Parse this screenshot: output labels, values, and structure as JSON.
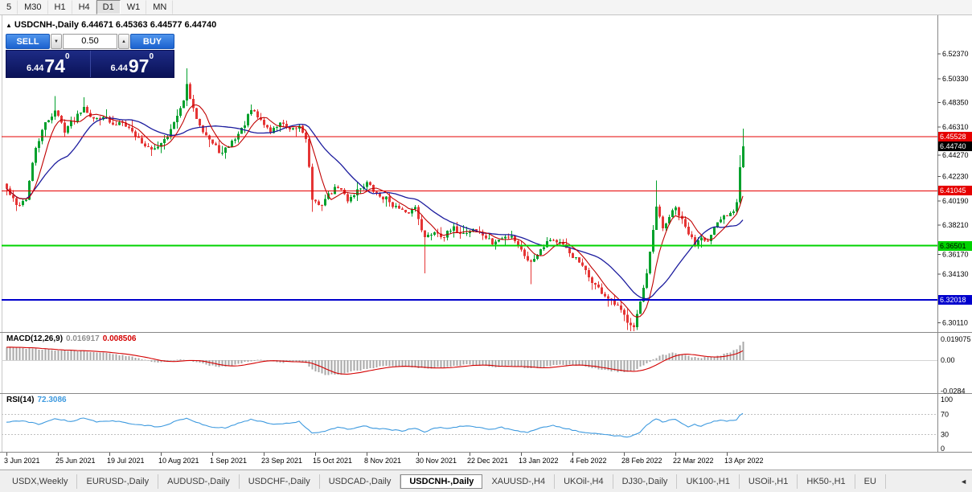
{
  "icons": {
    "collapse": "▲",
    "scroll_left": "◄",
    "spin_up": "▲",
    "spin_down": "▼"
  },
  "toolbar": {
    "timeframes": [
      "5",
      "M30",
      "H1",
      "H4",
      "D1",
      "W1",
      "MN"
    ],
    "active": "D1"
  },
  "chart_window": {
    "title": {
      "symbol": "USDCNH-,Daily",
      "ohlc": "6.44671 6.45363 6.44577 6.44740"
    },
    "trade_panel": {
      "sell_label": "SELL",
      "buy_label": "BUY",
      "volume": "0.50",
      "sell_price": {
        "prefix": "6.44",
        "big": "74",
        "sup": "0"
      },
      "buy_price": {
        "prefix": "6.44",
        "big": "97",
        "sup": "0"
      }
    }
  },
  "chart_data": {
    "type": "candlestick",
    "symbol": "USDCNH-,Daily",
    "current_ohlc": {
      "open": "6.44671",
      "high": "6.45363",
      "low": "6.44577",
      "close": "6.44740"
    },
    "count": 230,
    "candles_per_xlabel": 16,
    "x_labels": [
      "3 Jun 2021",
      "25 Jun 2021",
      "19 Jul 2021",
      "10 Aug 2021",
      "1 Sep 2021",
      "23 Sep 2021",
      "15 Oct 2021",
      "8 Nov 2021",
      "30 Nov 2021",
      "22 Dec 2021",
      "13 Jan 2022",
      "4 Feb 2022",
      "28 Feb 2022",
      "22 Mar 2022",
      "13 Apr 2022"
    ],
    "y_ticks": [
      "6.52370",
      "6.50330",
      "6.48350",
      "6.46310",
      "6.44270",
      "6.42230",
      "6.40190",
      "6.38210",
      "6.36170",
      "6.34130",
      "6.30110"
    ],
    "price_range": {
      "top": 6.5558,
      "bottom": 6.2935
    },
    "close_anchors": [
      [
        0,
        6.412
      ],
      [
        3,
        6.398
      ],
      [
        6,
        6.404
      ],
      [
        9,
        6.446
      ],
      [
        12,
        6.466
      ],
      [
        15,
        6.477
      ],
      [
        18,
        6.461
      ],
      [
        21,
        6.47
      ],
      [
        24,
        6.481
      ],
      [
        27,
        6.469
      ],
      [
        30,
        6.473
      ],
      [
        33,
        6.464
      ],
      [
        36,
        6.469
      ],
      [
        39,
        6.459
      ],
      [
        42,
        6.451
      ],
      [
        45,
        6.443
      ],
      [
        48,
        6.451
      ],
      [
        51,
        6.461
      ],
      [
        54,
        6.477
      ],
      [
        56,
        6.497
      ],
      [
        58,
        6.477
      ],
      [
        61,
        6.461
      ],
      [
        64,
        6.449
      ],
      [
        67,
        6.441
      ],
      [
        70,
        6.451
      ],
      [
        73,
        6.461
      ],
      [
        76,
        6.477
      ],
      [
        79,
        6.469
      ],
      [
        82,
        6.459
      ],
      [
        85,
        6.467
      ],
      [
        88,
        6.459
      ],
      [
        91,
        6.464
      ],
      [
        93,
        6.455
      ],
      [
        95,
        6.404
      ],
      [
        97,
        6.397
      ],
      [
        100,
        6.407
      ],
      [
        103,
        6.414
      ],
      [
        106,
        6.403
      ],
      [
        109,
        6.411
      ],
      [
        112,
        6.417
      ],
      [
        115,
        6.407
      ],
      [
        118,
        6.404
      ],
      [
        121,
        6.397
      ],
      [
        124,
        6.391
      ],
      [
        127,
        6.397
      ],
      [
        130,
        6.371
      ],
      [
        133,
        6.377
      ],
      [
        136,
        6.373
      ],
      [
        139,
        6.379
      ],
      [
        142,
        6.375
      ],
      [
        145,
        6.379
      ],
      [
        148,
        6.374
      ],
      [
        151,
        6.367
      ],
      [
        154,
        6.371
      ],
      [
        157,
        6.374
      ],
      [
        160,
        6.361
      ],
      [
        163,
        6.351
      ],
      [
        166,
        6.363
      ],
      [
        169,
        6.371
      ],
      [
        172,
        6.367
      ],
      [
        175,
        6.359
      ],
      [
        178,
        6.351
      ],
      [
        181,
        6.339
      ],
      [
        184,
        6.329
      ],
      [
        187,
        6.321
      ],
      [
        190,
        6.314
      ],
      [
        193,
        6.303
      ],
      [
        195,
        6.299
      ],
      [
        197,
        6.318
      ],
      [
        199,
        6.34
      ],
      [
        202,
        6.396
      ],
      [
        204,
        6.379
      ],
      [
        206,
        6.389
      ],
      [
        208,
        6.396
      ],
      [
        210,
        6.385
      ],
      [
        212,
        6.375
      ],
      [
        214,
        6.366
      ],
      [
        216,
        6.374
      ],
      [
        218,
        6.368
      ],
      [
        220,
        6.378
      ],
      [
        222,
        6.387
      ],
      [
        224,
        6.391
      ],
      [
        226,
        6.395
      ],
      [
        227,
        6.401
      ],
      [
        228,
        6.43
      ],
      [
        229,
        6.4474
      ]
    ],
    "wick_highs": [
      [
        15,
        6.489
      ],
      [
        24,
        6.488
      ],
      [
        56,
        6.512
      ],
      [
        76,
        6.482
      ],
      [
        202,
        6.419
      ],
      [
        228,
        6.44
      ],
      [
        229,
        6.462
      ]
    ],
    "wick_lows": [
      [
        95,
        6.393
      ],
      [
        130,
        6.342
      ],
      [
        163,
        6.333
      ],
      [
        193,
        6.295
      ],
      [
        195,
        6.294
      ]
    ],
    "h_lines": [
      {
        "price": 6.45528,
        "label": "6.45528",
        "color": "#e60000",
        "text_color": "#ffffff",
        "width": 1
      },
      {
        "price": 6.41045,
        "label": "6.41045",
        "color": "#e60000",
        "text_color": "#ffffff",
        "width": 1
      },
      {
        "price": 6.36501,
        "label": "6.36501",
        "color": "#00d300",
        "text_color": "#000000",
        "width": 2
      },
      {
        "price": 6.32018,
        "label": "6.32018",
        "color": "#0000cd",
        "text_color": "#ffffff",
        "width": 2
      }
    ],
    "current_price": {
      "value": 6.4474,
      "label": "6.44740",
      "bg": "#000000",
      "text_color": "#ffffff"
    },
    "colors": {
      "up": "#00a02c",
      "down": "#e53535",
      "ma_fast": "#c00000",
      "ma_slow": "#1c1c9e",
      "macd_hist": "#a8a8a8",
      "macd_signal": "#d40000",
      "rsi": "#3e9adf"
    },
    "ma_periods": {
      "fast": 7,
      "slow": 20
    },
    "indicators": {
      "macd": {
        "name": "MACD(12,26,9)",
        "value": "0.016917",
        "signal": "0.008506",
        "scale_labels": [
          "0.019075",
          "0.00",
          "-0.0284"
        ],
        "scale_values": [
          0.019075,
          0,
          -0.0284
        ],
        "anchors": [
          [
            0,
            0.012
          ],
          [
            8,
            0.0105
          ],
          [
            16,
            0.009
          ],
          [
            24,
            0.0085
          ],
          [
            32,
            0.006
          ],
          [
            38,
            0.0035
          ],
          [
            42,
            0.001
          ],
          [
            46,
            -0.002
          ],
          [
            50,
            -0.001
          ],
          [
            54,
            0.001
          ],
          [
            58,
            -0.001
          ],
          [
            62,
            -0.004
          ],
          [
            66,
            -0.006
          ],
          [
            70,
            -0.005
          ],
          [
            74,
            -0.002
          ],
          [
            78,
            0.0
          ],
          [
            82,
            -0.001
          ],
          [
            86,
            -0.002
          ],
          [
            90,
            -0.001
          ],
          [
            93,
            -0.003
          ],
          [
            96,
            -0.011
          ],
          [
            100,
            -0.0135
          ],
          [
            104,
            -0.0125
          ],
          [
            108,
            -0.01
          ],
          [
            112,
            -0.008
          ],
          [
            116,
            -0.006
          ],
          [
            120,
            -0.005
          ],
          [
            124,
            -0.006
          ],
          [
            128,
            -0.0075
          ],
          [
            132,
            -0.007
          ],
          [
            136,
            -0.006
          ],
          [
            140,
            -0.005
          ],
          [
            144,
            -0.004
          ],
          [
            148,
            -0.005
          ],
          [
            152,
            -0.006
          ],
          [
            156,
            -0.005
          ],
          [
            160,
            -0.0065
          ],
          [
            164,
            -0.0075
          ],
          [
            168,
            -0.006
          ],
          [
            172,
            -0.004
          ],
          [
            176,
            -0.0045
          ],
          [
            180,
            -0.006
          ],
          [
            184,
            -0.008
          ],
          [
            188,
            -0.01
          ],
          [
            192,
            -0.011
          ],
          [
            195,
            -0.0095
          ],
          [
            198,
            -0.005
          ],
          [
            201,
            0.001
          ],
          [
            204,
            0.005
          ],
          [
            207,
            0.0065
          ],
          [
            210,
            0.005
          ],
          [
            213,
            0.003
          ],
          [
            216,
            0.002
          ],
          [
            219,
            0.003
          ],
          [
            222,
            0.0045
          ],
          [
            225,
            0.007
          ],
          [
            227,
            0.01
          ],
          [
            229,
            0.016917
          ]
        ]
      },
      "rsi": {
        "name": "RSI(14)",
        "value": "72.3086",
        "scale_labels": [
          "100",
          "70",
          "30",
          "0"
        ],
        "scale_values": [
          100,
          70,
          30,
          0
        ],
        "levels": [
          70,
          30
        ],
        "anchors": [
          [
            0,
            55
          ],
          [
            5,
            58
          ],
          [
            10,
            50
          ],
          [
            15,
            62
          ],
          [
            20,
            56
          ],
          [
            24,
            63
          ],
          [
            28,
            55
          ],
          [
            33,
            58
          ],
          [
            38,
            52
          ],
          [
            43,
            48
          ],
          [
            48,
            45
          ],
          [
            52,
            55
          ],
          [
            56,
            63
          ],
          [
            60,
            52
          ],
          [
            64,
            45
          ],
          [
            68,
            43
          ],
          [
            72,
            52
          ],
          [
            76,
            60
          ],
          [
            80,
            55
          ],
          [
            84,
            50
          ],
          [
            88,
            53
          ],
          [
            91,
            56
          ],
          [
            95,
            33
          ],
          [
            99,
            36
          ],
          [
            103,
            45
          ],
          [
            107,
            40
          ],
          [
            111,
            47
          ],
          [
            115,
            42
          ],
          [
            119,
            40
          ],
          [
            123,
            37
          ],
          [
            127,
            43
          ],
          [
            130,
            35
          ],
          [
            134,
            44
          ],
          [
            138,
            42
          ],
          [
            142,
            47
          ],
          [
            146,
            45
          ],
          [
            150,
            40
          ],
          [
            154,
            44
          ],
          [
            158,
            38
          ],
          [
            162,
            34
          ],
          [
            166,
            44
          ],
          [
            170,
            48
          ],
          [
            174,
            42
          ],
          [
            178,
            36
          ],
          [
            182,
            32
          ],
          [
            186,
            30
          ],
          [
            190,
            27
          ],
          [
            194,
            25
          ],
          [
            197,
            35
          ],
          [
            199,
            48
          ],
          [
            202,
            62
          ],
          [
            204,
            55
          ],
          [
            206,
            58
          ],
          [
            208,
            60
          ],
          [
            210,
            52
          ],
          [
            212,
            46
          ],
          [
            214,
            50
          ],
          [
            216,
            46
          ],
          [
            218,
            52
          ],
          [
            220,
            56
          ],
          [
            222,
            58
          ],
          [
            224,
            57
          ],
          [
            226,
            58
          ],
          [
            227,
            60
          ],
          [
            228,
            68
          ],
          [
            229,
            72.3086
          ]
        ]
      }
    }
  },
  "tabbar": {
    "active": "USDCNH-,Daily",
    "tabs": [
      "USDX,Weekly",
      "EURUSD-,Daily",
      "AUDUSD-,Daily",
      "USDCHF-,Daily",
      "USDCAD-,Daily",
      "USDCNH-,Daily",
      "XAUUSD-,H4",
      "UKOil-,H4",
      "DJ30-,Daily",
      "UK100-,H1",
      "USOil-,H1",
      "HK50-,H1",
      "EU"
    ]
  }
}
